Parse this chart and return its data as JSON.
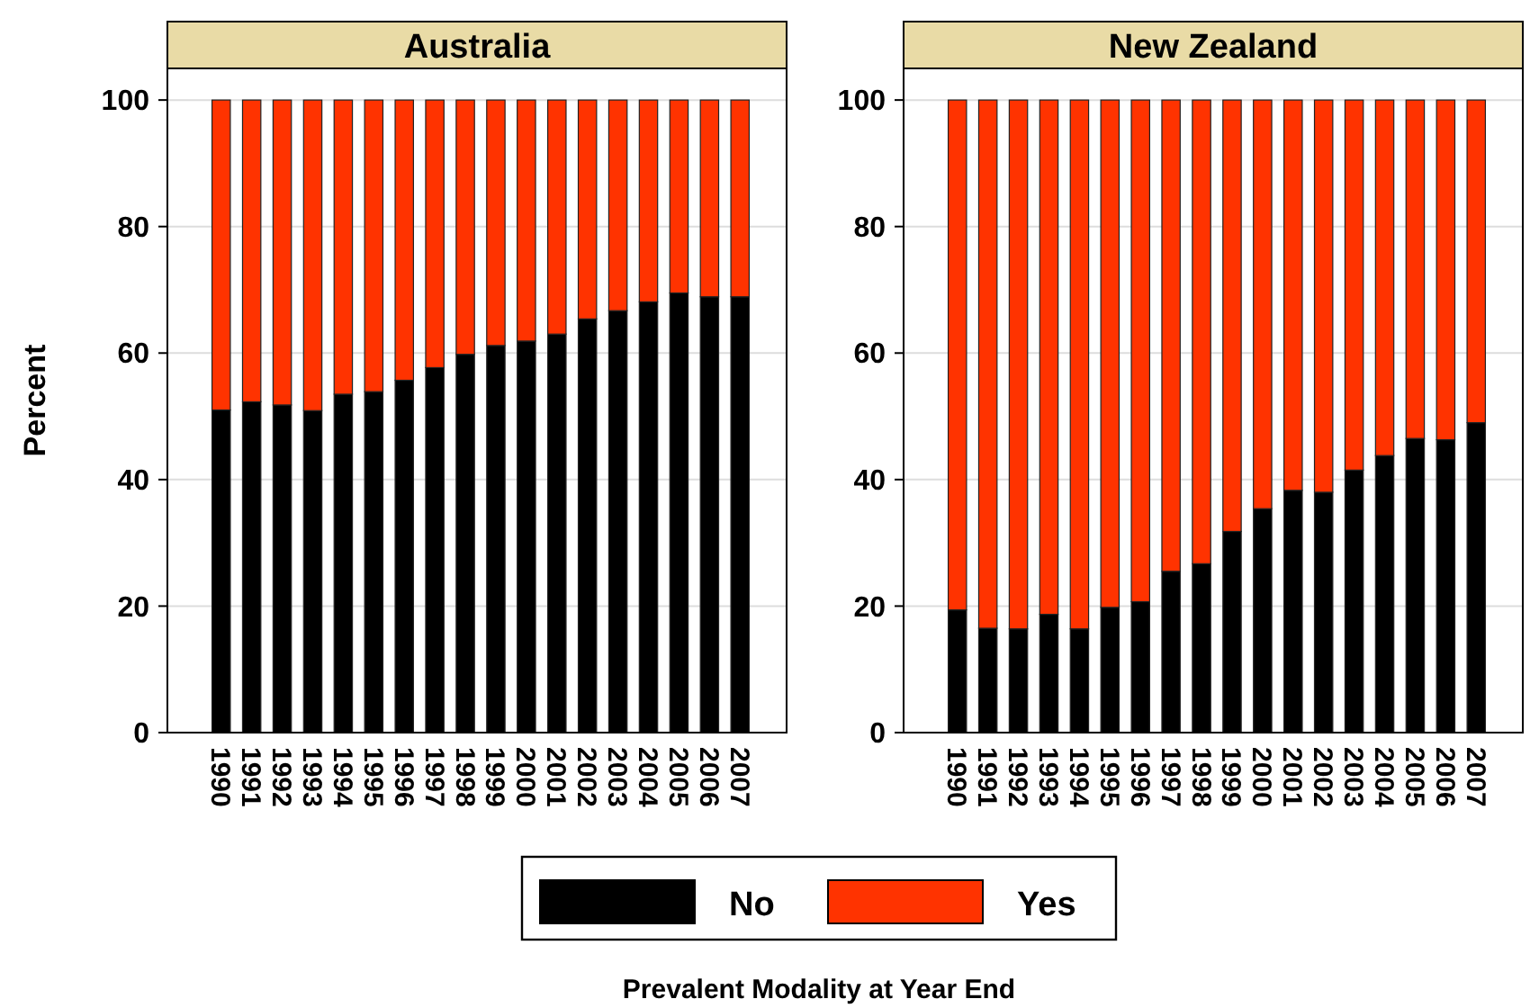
{
  "chart_data": [
    {
      "type": "bar",
      "title": "Australia",
      "ylabel": "Percent",
      "legend_title": "Prevalent Modality at Year End",
      "stacked": true,
      "grid": "y",
      "legend": "bottom",
      "categories": [
        "1990",
        "1991",
        "1992",
        "1993",
        "1994",
        "1995",
        "1996",
        "1997",
        "1998",
        "1999",
        "2000",
        "2001",
        "2002",
        "2003",
        "2004",
        "2005",
        "2006",
        "2007"
      ],
      "ylim": [
        0,
        105
      ],
      "yticks": [
        0,
        20,
        40,
        60,
        80,
        100
      ],
      "series": [
        {
          "name": "No",
          "color": "#000000",
          "values": [
            51.0,
            52.3,
            51.8,
            50.9,
            53.5,
            53.9,
            55.7,
            57.7,
            59.8,
            61.2,
            61.9,
            63.0,
            65.4,
            66.7,
            68.1,
            69.5,
            68.9,
            68.9
          ]
        },
        {
          "name": "Yes",
          "color": "#ff3300",
          "values": [
            49.0,
            47.7,
            48.2,
            49.1,
            46.5,
            46.1,
            44.3,
            42.3,
            40.2,
            38.8,
            38.1,
            37.0,
            34.6,
            33.3,
            31.9,
            30.5,
            31.1,
            31.1
          ]
        }
      ]
    },
    {
      "type": "bar",
      "title": "New Zealand",
      "stacked": true,
      "grid": "y",
      "categories": [
        "1990",
        "1991",
        "1992",
        "1993",
        "1994",
        "1995",
        "1996",
        "1997",
        "1998",
        "1999",
        "2000",
        "2001",
        "2002",
        "2003",
        "2004",
        "2005",
        "2006",
        "2007"
      ],
      "ylim": [
        0,
        105
      ],
      "yticks": [
        0,
        20,
        40,
        60,
        80,
        100
      ],
      "series": [
        {
          "color": "#000000",
          "values": [
            19.4,
            16.5,
            16.4,
            18.7,
            16.4,
            19.8,
            20.7,
            25.5,
            26.7,
            31.8,
            35.4,
            38.3,
            38.0,
            41.5,
            43.8,
            46.5,
            46.3,
            49.0
          ]
        },
        {
          "color": "#ff3300",
          "values": [
            80.6,
            83.5,
            83.6,
            81.3,
            83.6,
            80.2,
            79.3,
            74.5,
            73.3,
            68.2,
            64.6,
            61.7,
            62.0,
            58.5,
            56.2,
            53.5,
            53.7,
            51.0
          ]
        }
      ]
    }
  ]
}
